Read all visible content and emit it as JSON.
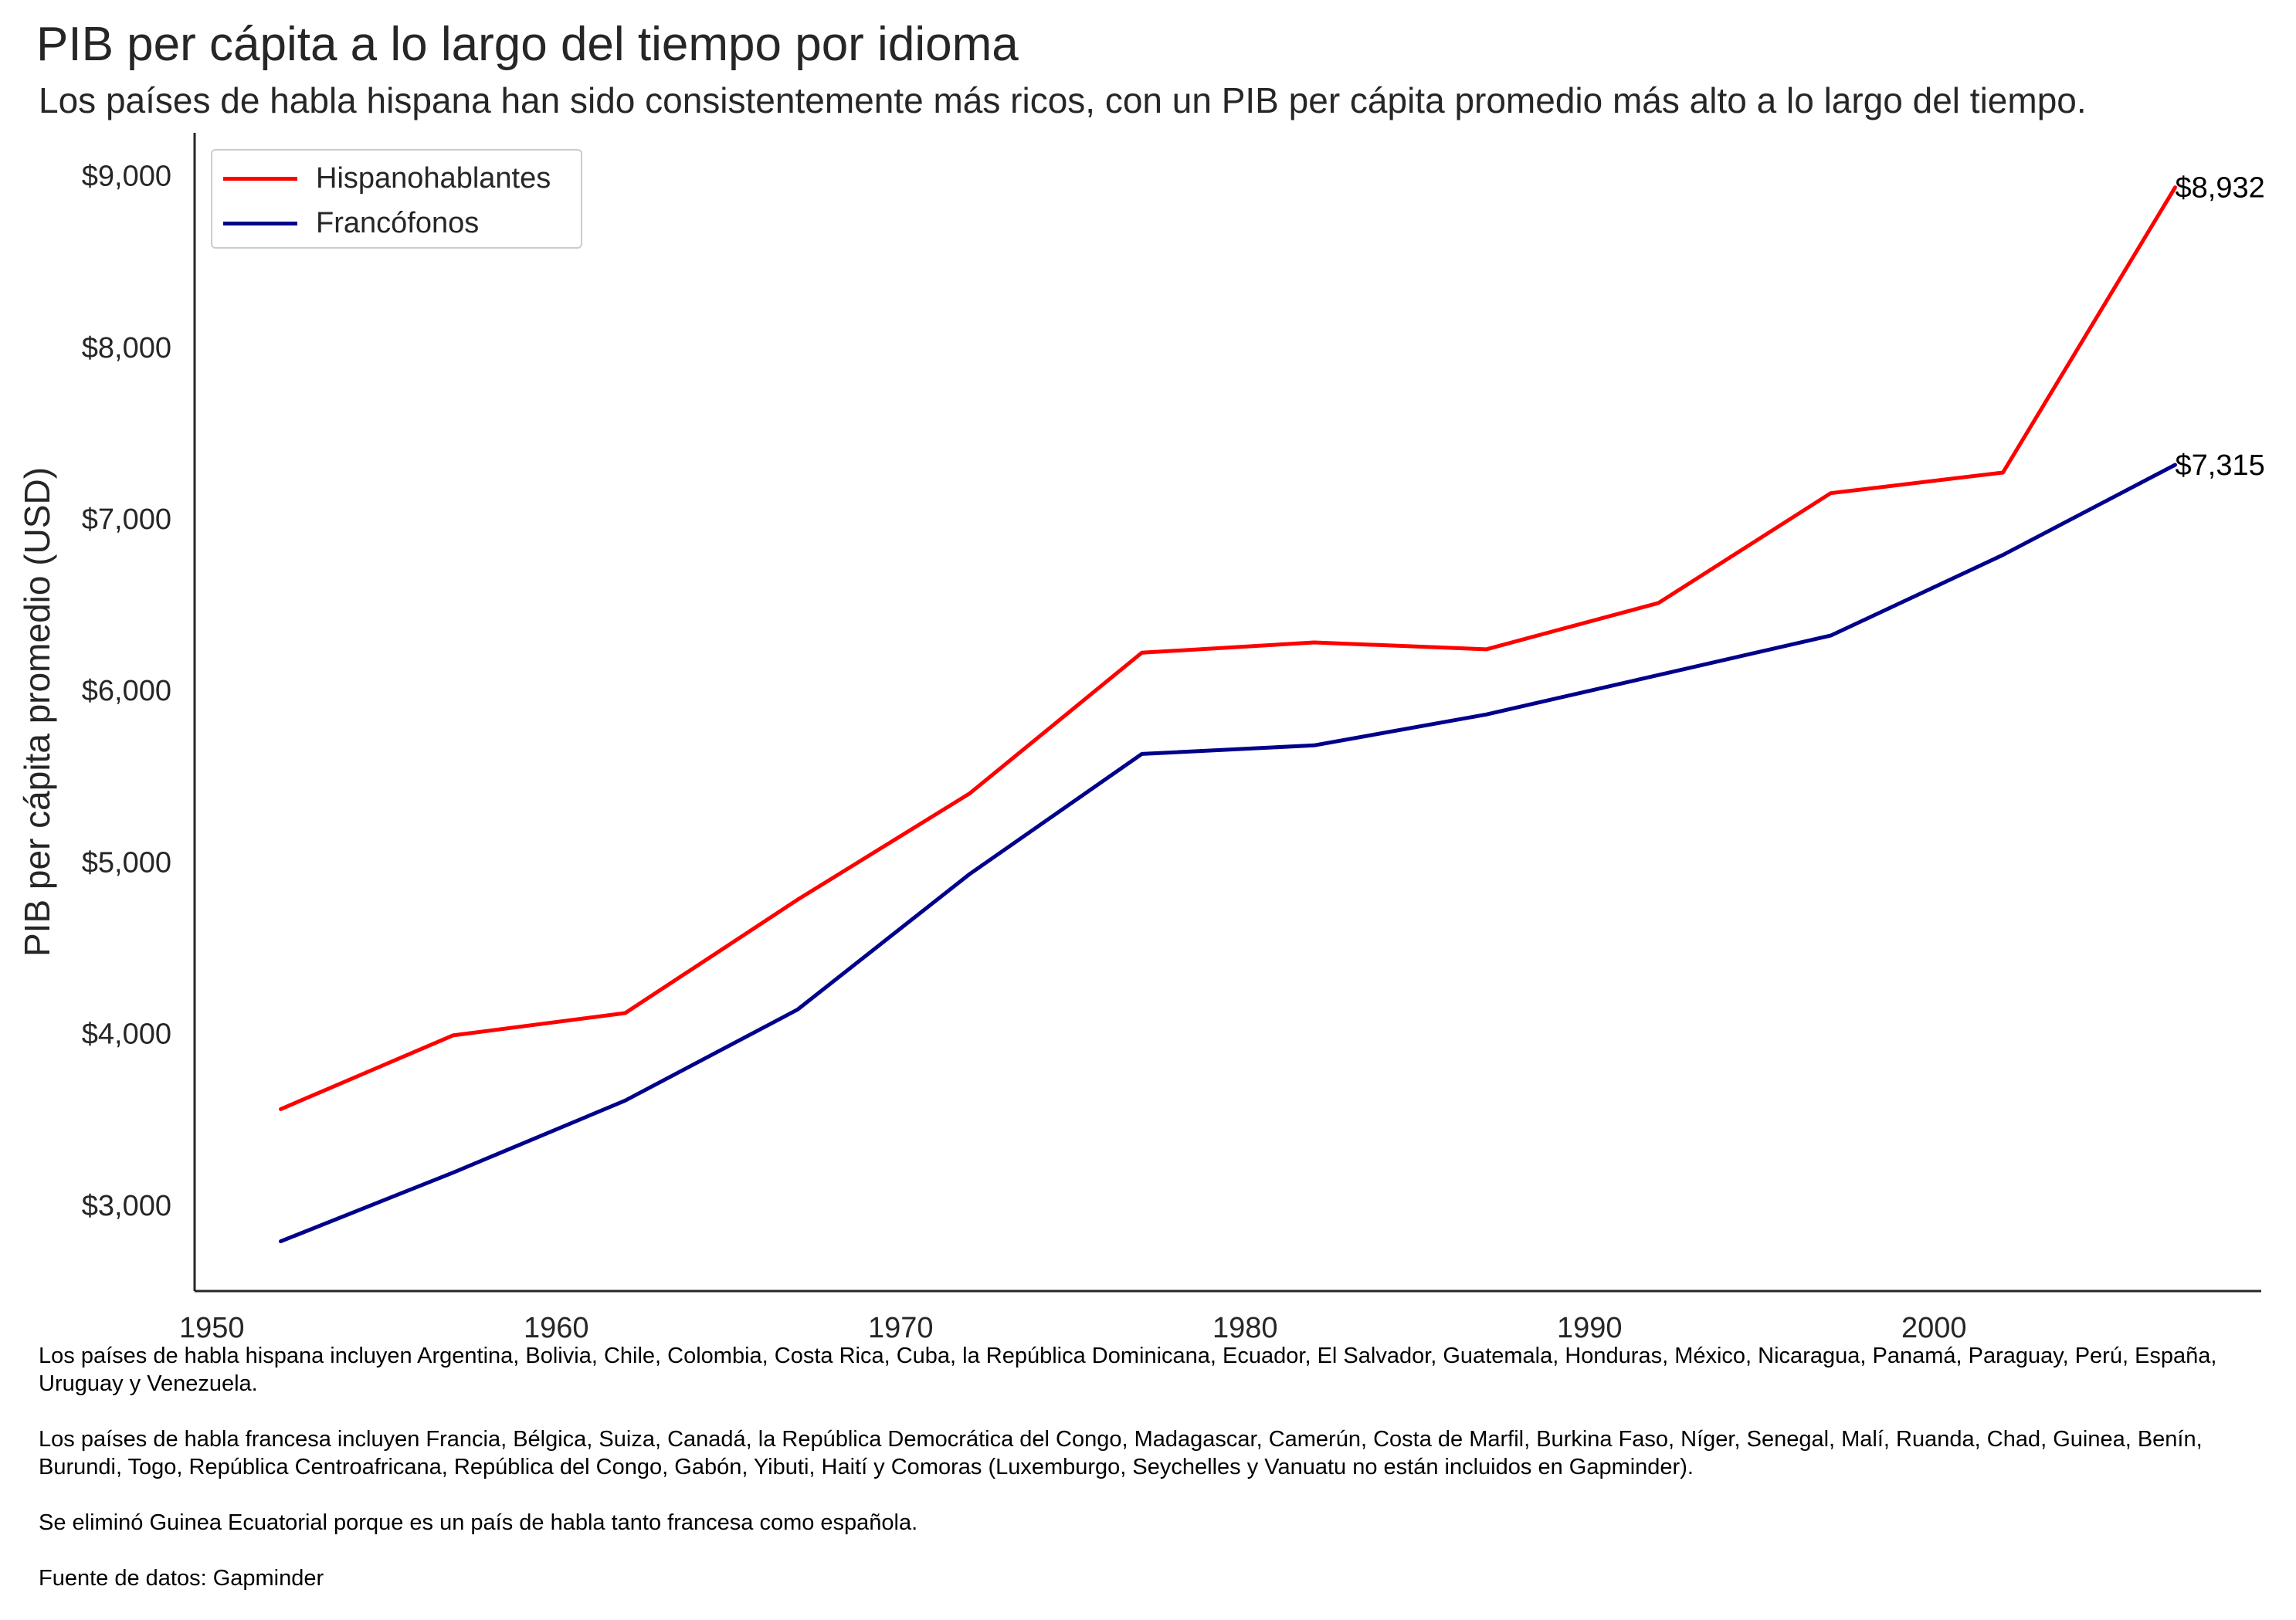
{
  "title": "PIB per cápita a lo largo del tiempo por idioma",
  "subtitle": "Los países de habla hispana han sido consistentemente más ricos, con un PIB per cápita promedio más alto a lo largo del tiempo.",
  "chart_data": {
    "type": "line",
    "ylabel": "PIB per cápita promedio (USD)",
    "xlabel": "",
    "xlim": [
      1949.5,
      2009.5
    ],
    "ylim": [
      2500,
      9250
    ],
    "x_ticks": [
      1950,
      1960,
      1970,
      1980,
      1990,
      2000
    ],
    "y_ticks": [
      3000,
      4000,
      5000,
      6000,
      7000,
      8000,
      9000
    ],
    "y_tick_labels": [
      "$3,000",
      "$4,000",
      "$5,000",
      "$6,000",
      "$7,000",
      "$8,000",
      "$9,000"
    ],
    "grid": false,
    "legend_position": "top-left",
    "x": [
      1952,
      1957,
      1962,
      1967,
      1972,
      1977,
      1982,
      1987,
      1992,
      1997,
      2002,
      2007
    ],
    "series": [
      {
        "name": "Hispanohablantes",
        "color": "#ff0000",
        "values": [
          3560,
          3990,
          4120,
          4780,
          5400,
          6220,
          6280,
          6240,
          6510,
          7150,
          7270,
          8932
        ],
        "end_label": "$8,932"
      },
      {
        "name": "Francófonos",
        "color": "#00008b",
        "values": [
          2790,
          3190,
          3610,
          4140,
          4930,
          5630,
          5680,
          5860,
          6090,
          6320,
          6790,
          7315
        ],
        "end_label": "$7,315"
      }
    ]
  },
  "notes": [
    "Los países de habla hispana incluyen Argentina, Bolivia, Chile, Colombia, Costa Rica, Cuba, la República Dominicana, Ecuador, El Salvador, Guatemala, Honduras, México, Nicaragua, Panamá, Paraguay, Perú, España, Uruguay y Venezuela.",
    "Los países de habla francesa incluyen Francia, Bélgica, Suiza, Canadá, la República Democrática del Congo, Madagascar, Camerún, Costa de Marfil, Burkina Faso, Níger, Senegal, Malí, Ruanda, Chad, Guinea, Benín, Burundi, Togo, República Centroafricana, República del Congo, Gabón, Yibuti, Haití y Comoras (Luxemburgo, Seychelles y Vanuatu no están incluidos en Gapminder).",
    "Se eliminó Guinea Ecuatorial porque es un país de habla tanto francesa como española.",
    "Fuente de datos: Gapminder"
  ]
}
